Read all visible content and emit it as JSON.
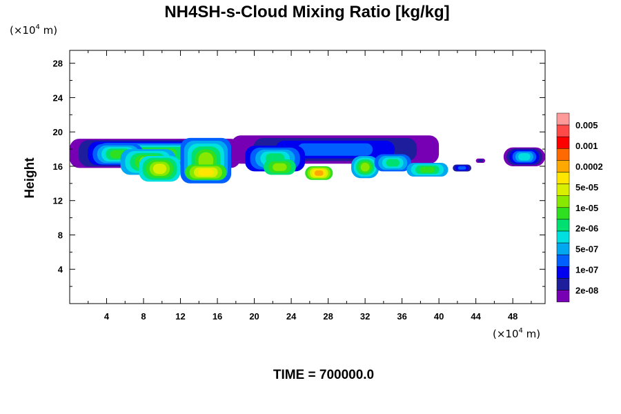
{
  "chart_data": {
    "type": "heatmap",
    "title": "NH4SH-s-Cloud Mixing Ratio [kg/kg]",
    "xlabel": "",
    "ylabel": "Height",
    "x_units": {
      "prefix": "(×10",
      "exp": "4",
      "suffix": " m)"
    },
    "y_units": {
      "prefix": "(×10",
      "exp": "4",
      "suffix": " m)"
    },
    "xlim": [
      0,
      51.5
    ],
    "ylim": [
      0,
      29.5
    ],
    "x_ticks": [
      4,
      8,
      12,
      16,
      20,
      24,
      28,
      32,
      36,
      40,
      44,
      48
    ],
    "y_ticks": [
      4,
      8,
      12,
      16,
      20,
      24,
      28
    ],
    "x_minor_step": 2,
    "y_minor_step": 2,
    "grid": false,
    "legend_placement": "right",
    "legend": {
      "labels": [
        "0.005",
        "0.001",
        "0.0002",
        "5e-05",
        "1e-05",
        "2e-06",
        "5e-07",
        "1e-07",
        "2e-08"
      ],
      "colors": [
        "#ff9a9a",
        "#ff4a4a",
        "#ff0000",
        "#ff6a00",
        "#ffa800",
        "#ffe600",
        "#d8f000",
        "#88e800",
        "#2ee020",
        "#00e070",
        "#00e0e0",
        "#00a8f0",
        "#0060ff",
        "#0000f0",
        "#1e1e9c",
        "#7800b4"
      ]
    },
    "contour_levels_color": [
      "#7800b4",
      "#1e1e9c",
      "#0000f0",
      "#0060ff",
      "#00a8f0",
      "#00e0e0",
      "#00e070",
      "#2ee020",
      "#88e800",
      "#d8f000",
      "#ffe600",
      "#ffa800"
    ],
    "time_label": "TIME = 700000.0"
  }
}
